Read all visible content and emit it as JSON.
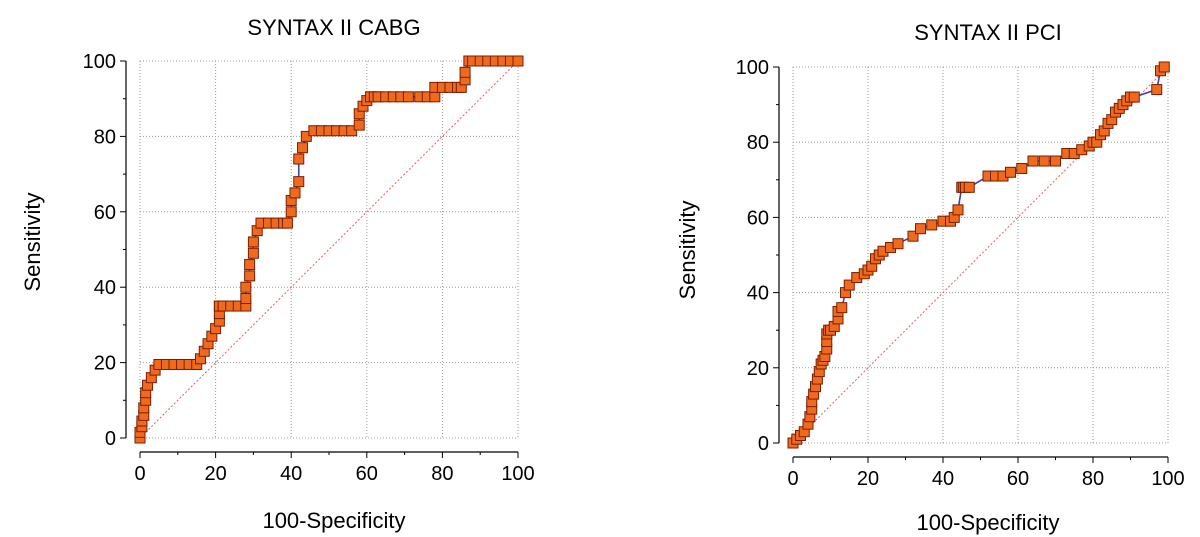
{
  "colors": {
    "marker_fill": "#f06a1e",
    "marker_edge": "#7a1e00",
    "curve_line": "#4040b0",
    "diagonal_line": "#e06060",
    "grid": "#999999"
  },
  "marker_shape": "square",
  "chart_data": [
    {
      "type": "line",
      "title": "SYNTAX II CABG",
      "xlabel": "100-Specificity",
      "ylabel": "Sensitivity",
      "xlim": [
        0,
        100
      ],
      "ylim": [
        0,
        100
      ],
      "xticks": [
        "0",
        "20",
        "40",
        "60",
        "80",
        "100"
      ],
      "yticks": [
        "0",
        "20",
        "40",
        "60",
        "80",
        "100"
      ],
      "grid": true,
      "reference_line": {
        "x": [
          0,
          100
        ],
        "y": [
          0,
          100
        ]
      },
      "series": [
        {
          "x": [
            0,
            0,
            0.5,
            0.5,
            1,
            1,
            1.5,
            1.5,
            2,
            3,
            4,
            5,
            7,
            9,
            11,
            13,
            15,
            16,
            17,
            18,
            19,
            20,
            21,
            21,
            21,
            21,
            22,
            24,
            26,
            28,
            28,
            28,
            29,
            29,
            30,
            30,
            31,
            32,
            34,
            36,
            38,
            39,
            40,
            40,
            41,
            42,
            42,
            43,
            44,
            46,
            48,
            50,
            52,
            54,
            56,
            58,
            58,
            59,
            60,
            61,
            62,
            63,
            65,
            67,
            69,
            71,
            74,
            76,
            78,
            78,
            80,
            82,
            84,
            85,
            86,
            86,
            87,
            88,
            90,
            92,
            94,
            96,
            98,
            100
          ],
          "y": [
            0,
            1.5,
            3,
            4.5,
            6,
            8,
            10,
            12,
            14,
            16,
            18,
            19.5,
            19.5,
            19.5,
            19.5,
            19.5,
            19.5,
            21,
            23,
            25,
            27,
            29,
            31,
            33,
            35,
            35,
            35,
            35,
            35,
            35,
            37,
            40,
            43,
            46,
            49,
            52,
            55,
            57,
            57,
            57,
            57,
            57,
            60,
            63,
            65,
            68,
            74,
            77,
            80,
            81.5,
            81.5,
            81.5,
            81.5,
            81.5,
            81.5,
            83,
            86,
            88,
            89.5,
            90.5,
            90.5,
            90.5,
            90.5,
            90.5,
            90.5,
            90.5,
            90.5,
            90.5,
            90.5,
            93,
            93,
            93,
            93,
            93,
            95,
            97,
            100,
            100,
            100,
            100,
            100,
            100,
            100,
            100
          ]
        }
      ]
    },
    {
      "type": "line",
      "title": "SYNTAX II PCI",
      "xlabel": "100-Specificity",
      "ylabel": "Sensitivity",
      "xlim": [
        0,
        100
      ],
      "ylim": [
        0,
        100
      ],
      "xticks": [
        "0",
        "20",
        "40",
        "60",
        "80",
        "100"
      ],
      "yticks": [
        "0",
        "20",
        "40",
        "60",
        "80",
        "100"
      ],
      "grid": true,
      "reference_line": {
        "x": [
          0,
          100
        ],
        "y": [
          0,
          100
        ]
      },
      "series": [
        {
          "x": [
            0,
            1,
            2,
            3,
            4,
            4.5,
            5,
            5,
            5.5,
            6,
            6.5,
            7,
            7.5,
            8,
            8.5,
            9,
            9,
            9,
            9.5,
            10,
            11,
            12,
            12,
            13,
            14,
            15,
            17,
            19,
            20,
            21,
            22,
            23,
            24,
            26,
            28,
            32,
            34,
            37,
            40,
            42,
            43,
            44,
            45,
            45.5,
            46,
            47,
            52,
            54,
            56,
            58,
            61,
            64,
            67,
            70,
            73,
            75,
            77,
            79,
            80,
            81,
            82,
            83,
            84,
            85,
            86,
            87,
            88,
            89,
            90,
            91,
            97,
            98,
            99
          ],
          "y": [
            0,
            1,
            2,
            3,
            5,
            7,
            9,
            11,
            13,
            15,
            17,
            19,
            21,
            22,
            23,
            25,
            27,
            29,
            30,
            30,
            31,
            33,
            35,
            36,
            40,
            42,
            44,
            45,
            46,
            47,
            49,
            50,
            51,
            52,
            53,
            55,
            57,
            58,
            59,
            59,
            60,
            62,
            68,
            68,
            68,
            68,
            71,
            71,
            71,
            72,
            73,
            75,
            75,
            75,
            77,
            77,
            78,
            79,
            80,
            80,
            82,
            83,
            85,
            86,
            88,
            89,
            90,
            91,
            92,
            92,
            94,
            99,
            100
          ]
        }
      ]
    }
  ]
}
